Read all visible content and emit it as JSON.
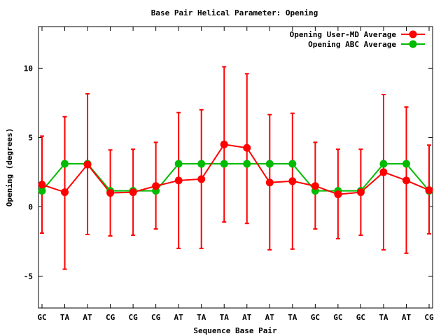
{
  "chart_data": {
    "type": "line",
    "title": "Base Pair Helical Parameter: Opening",
    "xlabel": "Sequence Base Pair",
    "ylabel": "Opening (degrees)",
    "categories": [
      "GC",
      "TA",
      "AT",
      "CG",
      "CG",
      "CG",
      "AT",
      "TA",
      "TA",
      "AT",
      "AT",
      "TA",
      "GC",
      "GC",
      "GC",
      "TA",
      "AT",
      "CG"
    ],
    "ylim": [
      -7.3,
      13.0
    ],
    "yticks": [
      -5,
      0,
      5,
      10
    ],
    "grid": false,
    "legend_position": "top-right",
    "series": [
      {
        "name": "Opening User-MD Average",
        "color": "#ff0000",
        "values": [
          1.6,
          1.05,
          3.05,
          1.0,
          1.05,
          1.5,
          1.9,
          2.0,
          4.5,
          4.25,
          1.75,
          1.85,
          1.5,
          0.9,
          1.05,
          2.5,
          1.9,
          1.2
        ],
        "err_low": [
          -1.9,
          -4.5,
          -2.0,
          -2.1,
          -2.05,
          -1.6,
          -3.0,
          -3.0,
          -1.1,
          -1.2,
          -3.1,
          -3.05,
          -1.6,
          -2.3,
          -2.05,
          -3.1,
          -3.35,
          -1.95
        ],
        "err_high": [
          5.1,
          6.5,
          8.15,
          4.1,
          4.15,
          4.65,
          6.8,
          7.0,
          10.1,
          9.6,
          6.65,
          6.75,
          4.65,
          4.15,
          4.15,
          8.1,
          7.2,
          4.45
        ]
      },
      {
        "name": "Opening ABC Average",
        "color": "#00bb00",
        "values": [
          1.15,
          3.1,
          3.1,
          1.15,
          1.15,
          1.15,
          3.1,
          3.1,
          3.1,
          3.1,
          3.1,
          3.1,
          1.15,
          1.15,
          1.15,
          3.1,
          3.1,
          1.15
        ]
      }
    ]
  }
}
